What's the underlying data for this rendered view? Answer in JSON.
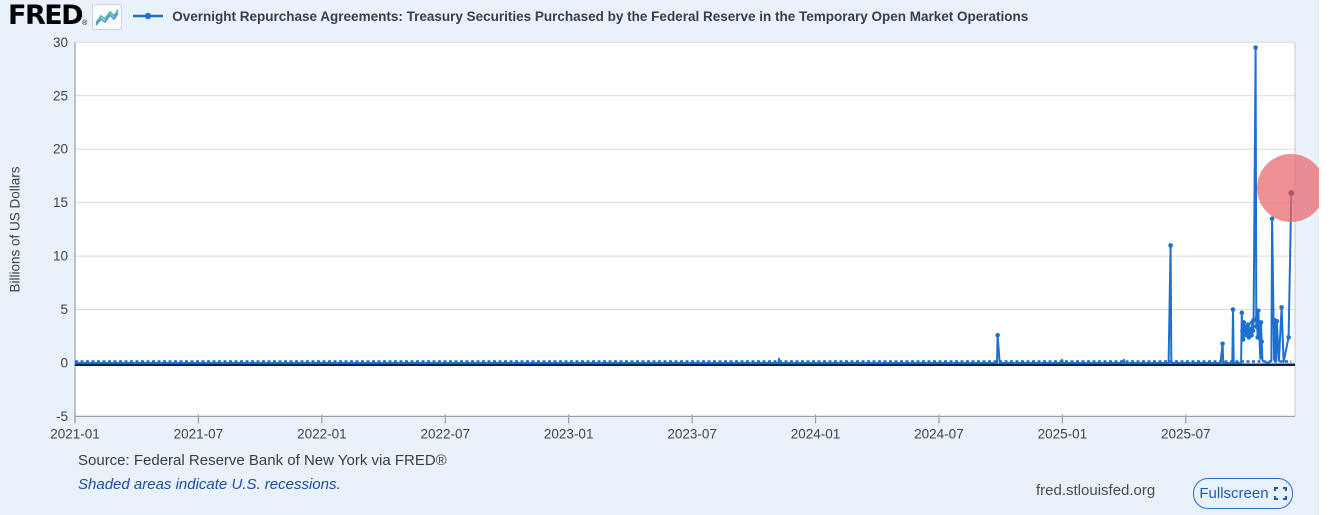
{
  "header": {
    "logo_text": "FRED",
    "logo_reg": "®",
    "series_title": "Overnight Repurchase Agreements: Treasury Securities Purchased by the Federal Reserve in the Temporary Open Market Operations"
  },
  "chart_data": {
    "type": "line",
    "title": "Overnight Repurchase Agreements: Treasury Securities Purchased by the Federal Reserve in the Temporary Open Market Operations",
    "ylabel": "Billions of US Dollars",
    "ylim": [
      -5,
      30
    ],
    "yticks": [
      30,
      25,
      20,
      15,
      10,
      5,
      0,
      -5
    ],
    "xticks": [
      "2021-01",
      "2021-07",
      "2022-01",
      "2022-07",
      "2023-01",
      "2023-07",
      "2024-01",
      "2024-07",
      "2025-01",
      "2025-07"
    ],
    "x_domain": [
      "2021-01-01",
      "2025-12-10"
    ],
    "grid": true,
    "legend_position": "top",
    "series_color": "#1e6fd0",
    "zero_line_color": "#0c2140",
    "last_marker_color": "#2b2566",
    "points": [
      [
        "2021-01-01",
        0
      ],
      [
        "2023-11-07",
        0
      ],
      [
        "2023-11-08",
        0.4
      ],
      [
        "2023-11-09",
        0
      ],
      [
        "2024-09-26",
        0
      ],
      [
        "2024-09-27",
        2.6
      ],
      [
        "2024-09-30",
        0
      ],
      [
        "2024-12-30",
        0
      ],
      [
        "2024-12-31",
        0.3
      ],
      [
        "2025-01-02",
        0
      ],
      [
        "2025-03-28",
        0
      ],
      [
        "2025-03-31",
        0.3
      ],
      [
        "2025-04-01",
        0
      ],
      [
        "2025-06-06",
        0
      ],
      [
        "2025-06-09",
        11.0
      ],
      [
        "2025-06-10",
        0
      ],
      [
        "2025-08-22",
        0
      ],
      [
        "2025-08-25",
        1.8
      ],
      [
        "2025-08-26",
        0
      ],
      [
        "2025-09-09",
        0
      ],
      [
        "2025-09-10",
        5.0
      ],
      [
        "2025-09-11",
        0
      ],
      [
        "2025-09-22",
        0
      ],
      [
        "2025-09-23",
        4.7
      ],
      [
        "2025-09-24",
        3.0
      ],
      [
        "2025-09-25",
        2.2
      ],
      [
        "2025-09-26",
        3.8
      ],
      [
        "2025-09-29",
        2.6
      ],
      [
        "2025-09-30",
        3.4
      ],
      [
        "2025-10-01",
        2.8
      ],
      [
        "2025-10-02",
        3.6
      ],
      [
        "2025-10-03",
        2.4
      ],
      [
        "2025-10-06",
        3.2
      ],
      [
        "2025-10-07",
        2.6
      ],
      [
        "2025-10-08",
        3.8
      ],
      [
        "2025-10-09",
        3.0
      ],
      [
        "2025-10-10",
        4.0
      ],
      [
        "2025-10-13",
        29.5
      ],
      [
        "2025-10-14",
        3.4
      ],
      [
        "2025-10-15",
        4.2
      ],
      [
        "2025-10-16",
        2.4
      ],
      [
        "2025-10-17",
        4.9
      ],
      [
        "2025-10-20",
        0.4
      ],
      [
        "2025-10-21",
        3.8
      ],
      [
        "2025-10-22",
        2.0
      ],
      [
        "2025-10-23",
        0.3
      ],
      [
        "2025-10-24",
        0.2
      ],
      [
        "2025-10-31",
        0
      ],
      [
        "2025-11-06",
        0.2
      ],
      [
        "2025-11-07",
        13.5
      ],
      [
        "2025-11-10",
        0.3
      ],
      [
        "2025-11-11",
        4.0
      ],
      [
        "2025-11-13",
        0.2
      ],
      [
        "2025-11-14",
        3.9
      ],
      [
        "2025-11-17",
        0.2
      ],
      [
        "2025-11-21",
        5.2
      ],
      [
        "2025-11-24",
        0.1
      ],
      [
        "2025-12-01",
        2.4
      ],
      [
        "2025-12-05",
        15.9
      ]
    ],
    "highlight": {
      "shape": "circle",
      "center_date": "2025-12-05",
      "center_value": 16.4,
      "color": "#e9676b",
      "opacity": 0.72
    }
  },
  "footer": {
    "source": "Source: Federal Reserve Bank of New York via FRED®",
    "recession_note": "Shaded areas indicate U.S. recessions.",
    "site": "fred.stlouisfed.org",
    "fullscreen_label": "Fullscreen"
  },
  "colors": {
    "background": "#e9f1fa",
    "plot_background": "#ffffff",
    "gridline": "#d9d9d9",
    "axis_line": "#9aa0a6",
    "tick_text": "#444444",
    "accent_blue": "#1e6fd0",
    "note_blue": "#1b4fa0",
    "highlight_red": "#e9676b"
  }
}
